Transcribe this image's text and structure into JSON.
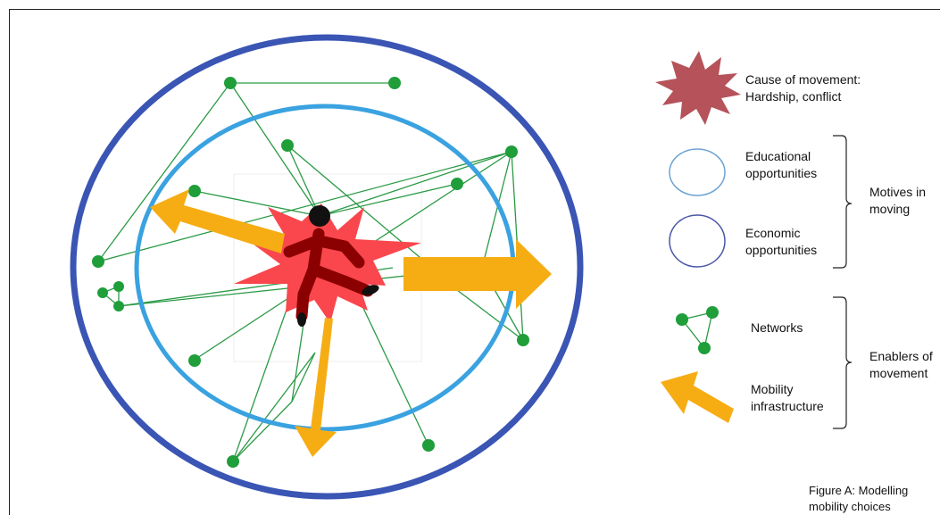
{
  "legend": {
    "cause": "Cause of movement:\nHardship, conflict",
    "educational": "Educational\nopportunities",
    "economic": "Economic\nopportunities",
    "motives": "Motives in\nmoving",
    "networks": "Networks",
    "enablers": "Enablers of\nmovement",
    "mobility": "Mobility\ninfrastructure"
  },
  "caption": "Figure A: Modelling\nmobility choices",
  "icons": [
    "starburst-icon",
    "running-person-icon",
    "network-icon",
    "arrow-icon"
  ],
  "colors": {
    "outer_ring": "#3a55b4",
    "inner_ring": "#3aa2e0",
    "network": "#1f9e3a",
    "arrow": "#f6ad14",
    "burst": "#f9474d",
    "legend_burst": "#b5525a",
    "person": "#8b0000"
  }
}
